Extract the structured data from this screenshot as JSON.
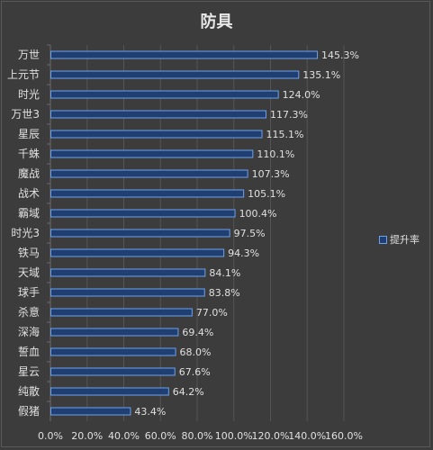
{
  "chart_data": {
    "type": "bar",
    "orientation": "horizontal",
    "title": "防具",
    "categories": [
      "万世",
      "上元节",
      "时光",
      "万世3",
      "星辰",
      "千蛛",
      "魔战",
      "战术",
      "霸域",
      "时光3",
      "铁马",
      "天域",
      "球手",
      "杀意",
      "深海",
      "誓血",
      "星云",
      "纯散",
      "假猪"
    ],
    "series": [
      {
        "name": "提升率",
        "values": [
          145.3,
          135.1,
          124.0,
          117.3,
          115.1,
          110.1,
          107.3,
          105.1,
          100.4,
          97.5,
          94.3,
          84.1,
          83.8,
          77.0,
          69.4,
          68.0,
          67.6,
          64.2,
          43.4
        ],
        "value_labels": [
          "145.3%",
          "135.1%",
          "124.0%",
          "117.3%",
          "115.1%",
          "110.1%",
          "107.3%",
          "105.1%",
          "100.4%",
          "97.5%",
          "94.3%",
          "84.1%",
          "83.8%",
          "77.0%",
          "69.4%",
          "68.0%",
          "67.6%",
          "64.2%",
          "43.4%"
        ]
      }
    ],
    "xlim": [
      0,
      160
    ],
    "x_ticks": [
      0,
      20,
      40,
      60,
      80,
      100,
      120,
      140,
      160
    ],
    "x_tick_labels": [
      "0.0%",
      "20.0%",
      "40.0%",
      "60.0%",
      "80.0%",
      "100.0%",
      "120.0%",
      "140.0%",
      "160.0%"
    ],
    "grid": "vertical",
    "legend_position": "right",
    "colors": {
      "background": "#3c3c3c",
      "bar_fill": "#1f3f73",
      "bar_stroke": "#6fa0e8",
      "text": "#e0e0e0",
      "grid": "#555555"
    }
  }
}
